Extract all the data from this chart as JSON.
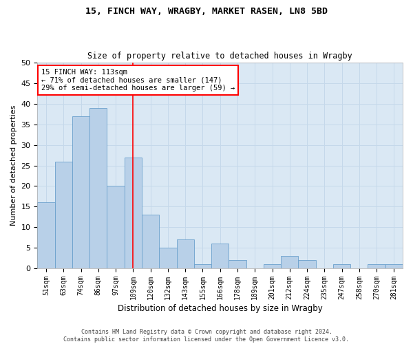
{
  "title1": "15, FINCH WAY, WRAGBY, MARKET RASEN, LN8 5BD",
  "title2": "Size of property relative to detached houses in Wragby",
  "xlabel": "Distribution of detached houses by size in Wragby",
  "ylabel": "Number of detached properties",
  "bar_color": "#b8d0e8",
  "bar_edge_color": "#6aa0cc",
  "grid_color": "#c5d8ea",
  "background_color": "#dae8f4",
  "categories": [
    "51sqm",
    "63sqm",
    "74sqm",
    "86sqm",
    "97sqm",
    "109sqm",
    "120sqm",
    "132sqm",
    "143sqm",
    "155sqm",
    "166sqm",
    "178sqm",
    "189sqm",
    "201sqm",
    "212sqm",
    "224sqm",
    "235sqm",
    "247sqm",
    "258sqm",
    "270sqm",
    "281sqm"
  ],
  "values": [
    16,
    26,
    37,
    39,
    20,
    27,
    13,
    5,
    7,
    1,
    6,
    2,
    0,
    1,
    3,
    2,
    0,
    1,
    0,
    1,
    1
  ],
  "ylim": [
    0,
    50
  ],
  "yticks": [
    0,
    5,
    10,
    15,
    20,
    25,
    30,
    35,
    40,
    45,
    50
  ],
  "red_line_index": 5.5,
  "annotation_title": "15 FINCH WAY: 113sqm",
  "annotation_line1": "← 71% of detached houses are smaller (147)",
  "annotation_line2": "29% of semi-detached houses are larger (59) →",
  "footer1": "Contains HM Land Registry data © Crown copyright and database right 2024.",
  "footer2": "Contains public sector information licensed under the Open Government Licence v3.0."
}
